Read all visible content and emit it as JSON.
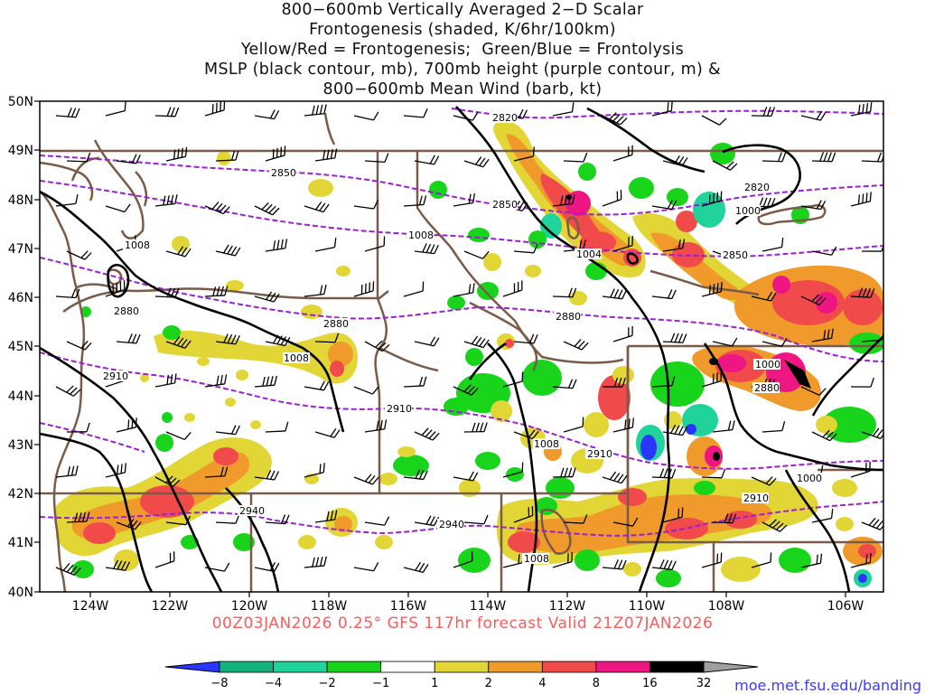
{
  "title_lines": [
    "800−600mb Vertically Averaged 2−D Scalar",
    "Frontogenesis (shaded, K/6hr/100km)",
    "Yellow/Red = Frontogenesis;  Green/Blue = Frontolysis",
    "MSLP (black contour, mb), 700mb height (purple contour, m) &",
    "800−600mb Mean Wind (barb, kt)"
  ],
  "lat_labels": [
    "50N",
    "49N",
    "48N",
    "47N",
    "46N",
    "45N",
    "44N",
    "43N",
    "42N",
    "41N",
    "40N"
  ],
  "lon_labels": [
    "124W",
    "122W",
    "120W",
    "118W",
    "116W",
    "114W",
    "112W",
    "110W",
    "108W",
    "106W"
  ],
  "valid_line": "00Z03JAN2026 0.25° GFS 117hr forecast Valid 21Z07JAN2026",
  "credit": "moe.met.fsu.edu/banding",
  "colorbar": {
    "ticks": [
      "−8",
      "−4",
      "−2",
      "−1",
      "1",
      "2",
      "4",
      "8",
      "16",
      "32"
    ],
    "colors": [
      "#2a35ff",
      "#12b27a",
      "#1fd39a",
      "#18d41a",
      "#ffffff",
      "#e2d636",
      "#ef9a2a",
      "#f04a4a",
      "#ee1683",
      "#000000",
      "#a0a0a0"
    ]
  },
  "colors": {
    "frontogenesis_weak": "#e2d636",
    "frontogenesis_mod": "#ef9a2a",
    "frontogenesis_strong": "#f04a4a",
    "frontogenesis_vstrong": "#ee1683",
    "frontolysis_weak": "#18d41a",
    "frontolysis_mod": "#1fd39a",
    "frontolysis_strong": "#2a35ff",
    "mslp": "#000000",
    "height700": "#9a1fd6",
    "borders": "#7a5a48"
  },
  "mslp_labels": [
    "1008",
    "1008",
    "1008",
    "1008",
    "1004",
    "1000",
    "1000",
    "1000",
    "1008"
  ],
  "height_labels": [
    "2820",
    "2850",
    "2850",
    "2820",
    "2850",
    "2880",
    "2880",
    "2880",
    "2880",
    "2910",
    "2910",
    "2910",
    "2940",
    "2940",
    "2910"
  ]
}
